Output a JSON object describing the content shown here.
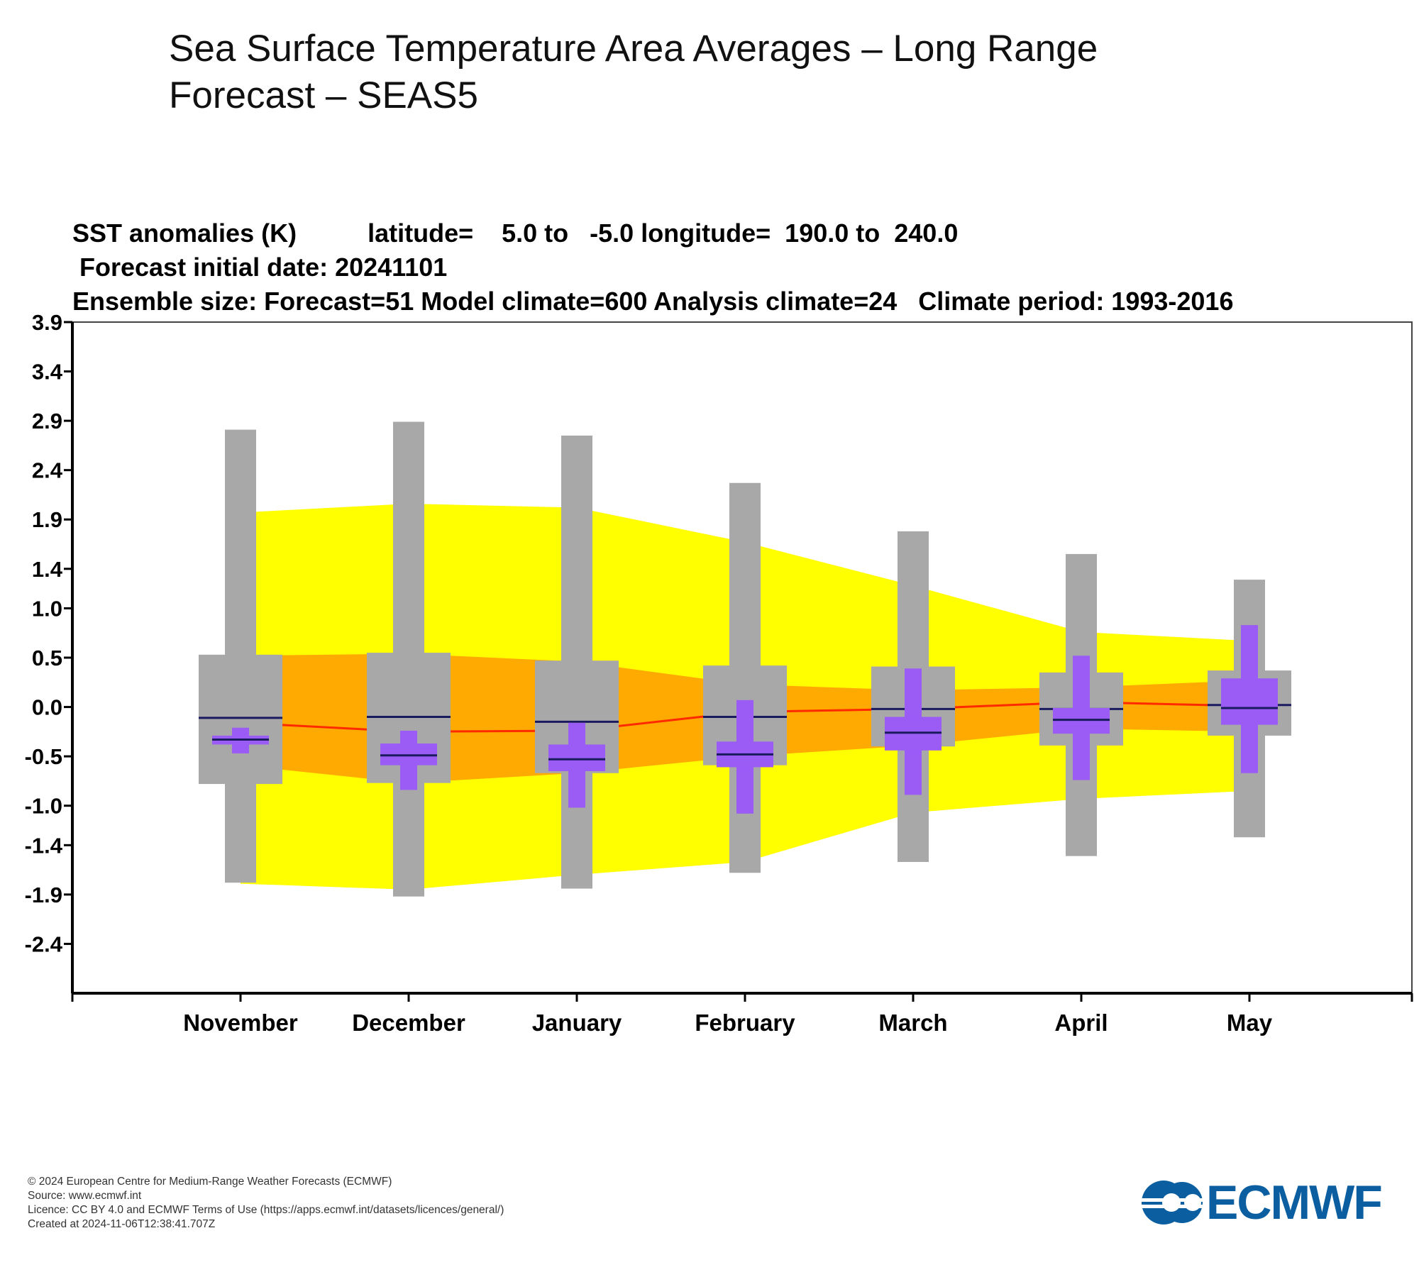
{
  "page": {
    "title": "Sea Surface Temperature Area Averages – Long Range Forecast – SEAS5"
  },
  "chart_data": {
    "type": "box-plume",
    "header_lines": [
      "SST anomalies (K)          latitude=    5.0 to   -5.0 longitude=  190.0 to  240.0",
      " Forecast initial date: 20241101",
      "Ensemble size: Forecast=51 Model climate=600 Analysis climate=24   Climate period: 1993-2016"
    ],
    "categories": [
      "November",
      "December",
      "January",
      "February",
      "March",
      "April",
      "May"
    ],
    "yticks": [
      "3.9",
      "3.4",
      "2.9",
      "2.4",
      "1.9",
      "1.4",
      "1.0",
      "0.5",
      "0.0",
      "-0.5",
      "-1.0",
      "-1.4",
      "-1.9",
      "-2.4"
    ],
    "ylim": [
      -2.9,
      3.9
    ],
    "ytick_values": [
      3.9,
      3.4,
      2.9,
      2.4,
      1.9,
      1.4,
      1.0,
      0.5,
      0.0,
      -0.5,
      -1.0,
      -1.4,
      -1.9,
      -2.4
    ],
    "climate": {
      "outer_high": [
        1.97,
        2.06,
        2.02,
        1.67,
        1.23,
        0.76,
        0.67
      ],
      "outer_low": [
        -1.79,
        -1.85,
        -1.7,
        -1.57,
        -1.07,
        -0.93,
        -0.85
      ],
      "inner_high": [
        0.52,
        0.54,
        0.46,
        0.23,
        0.17,
        0.2,
        0.27
      ],
      "inner_low": [
        -0.59,
        -0.77,
        -0.67,
        -0.5,
        -0.39,
        -0.22,
        -0.25
      ],
      "median": [
        -0.16,
        -0.25,
        -0.24,
        -0.05,
        -0.02,
        0.05,
        0.01
      ]
    },
    "model_climate": {
      "max": [
        2.81,
        2.89,
        2.75,
        2.27,
        1.78,
        1.55,
        1.29
      ],
      "q_high": [
        0.53,
        0.55,
        0.47,
        0.42,
        0.41,
        0.35,
        0.37
      ],
      "median": [
        -0.11,
        -0.1,
        -0.15,
        -0.1,
        -0.02,
        -0.02,
        0.02
      ],
      "q_low": [
        -0.78,
        -0.77,
        -0.67,
        -0.59,
        -0.4,
        -0.39,
        -0.29
      ],
      "min": [
        -1.78,
        -1.92,
        -1.84,
        -1.68,
        -1.57,
        -1.51,
        -1.32
      ]
    },
    "forecast": {
      "max": [
        -0.21,
        -0.24,
        -0.16,
        0.07,
        0.39,
        0.52,
        0.83
      ],
      "q_high": [
        -0.29,
        -0.37,
        -0.38,
        -0.35,
        -0.1,
        -0.01,
        0.29
      ],
      "median": [
        -0.33,
        -0.49,
        -0.53,
        -0.48,
        -0.26,
        -0.13,
        -0.01
      ],
      "q_low": [
        -0.38,
        -0.59,
        -0.65,
        -0.61,
        -0.44,
        -0.27,
        -0.18
      ],
      "min": [
        -0.47,
        -0.84,
        -1.02,
        -1.08,
        -0.89,
        -0.74,
        -0.67
      ]
    },
    "colors": {
      "climate_outer": "#ffff00",
      "climate_inner": "#ffaa00",
      "climate_median": "#ff2a00",
      "model_box": "#a8a8a8",
      "forecast_box": "#9b5cf6",
      "median_line": "#1a1a5e",
      "axis": "#000000"
    },
    "grid": false,
    "legend": "none"
  },
  "footer": {
    "lines": [
      "© 2024 European Centre for Medium-Range Weather Forecasts (ECMWF)",
      "Source: www.ecmwf.int",
      "Licence: CC BY 4.0 and ECMWF Terms of Use (https://apps.ecmwf.int/datasets/licences/general/)",
      "Created at 2024-11-06T12:38:41.707Z"
    ]
  },
  "logo": {
    "text": "ECMWF",
    "icon": "ecmwf-logo-icon"
  }
}
